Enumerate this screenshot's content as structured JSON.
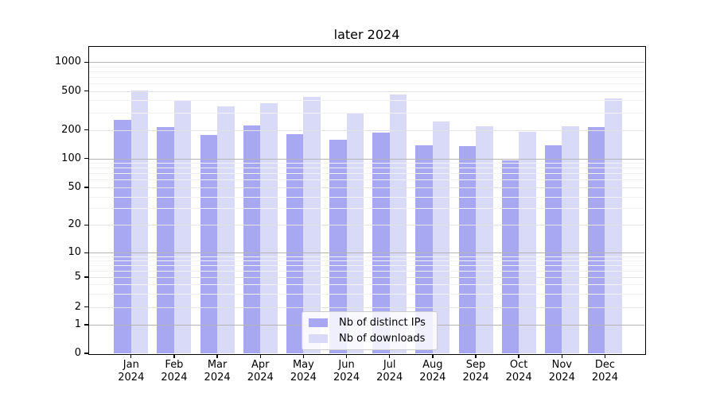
{
  "chart_data": {
    "type": "bar",
    "title": "later 2024",
    "months": [
      "Jan",
      "Feb",
      "Mar",
      "Apr",
      "May",
      "Jun",
      "Jul",
      "Aug",
      "Sep",
      "Oct",
      "Nov",
      "Dec"
    ],
    "year_label": "2024",
    "series": [
      {
        "name": "Nb of distinct IPs",
        "color": "#a7a7f2",
        "values": [
          255,
          215,
          176,
          220,
          180,
          158,
          188,
          138,
          136,
          95,
          138,
          215
        ]
      },
      {
        "name": "Nb of downloads",
        "color": "#d9d9f8",
        "values": [
          505,
          405,
          345,
          375,
          435,
          296,
          460,
          245,
          216,
          190,
          218,
          415
        ]
      }
    ],
    "yscale": "symlog",
    "y_ticks": [
      0,
      1,
      2,
      5,
      10,
      20,
      50,
      100,
      200,
      500,
      1000
    ],
    "minor_gridline_values": [
      3,
      4,
      6,
      7,
      8,
      9,
      30,
      40,
      60,
      70,
      80,
      90,
      300,
      400,
      600,
      700,
      800,
      900
    ],
    "ylim": [
      0,
      1440
    ],
    "xlabel": "",
    "ylabel": "",
    "grid": true,
    "legend_position": "lower center",
    "gridline_colors": {
      "power_of_ten": "#b4b4b4",
      "labeled": "#e3e3e3",
      "minor": "#f2f2f2"
    }
  }
}
